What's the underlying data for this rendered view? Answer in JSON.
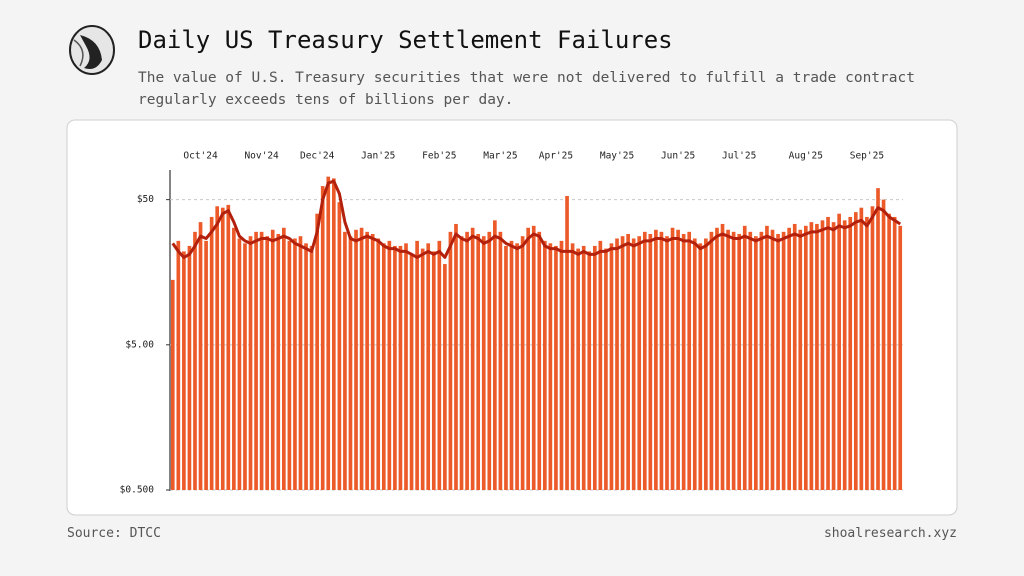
{
  "chart_data": {
    "type": "bar",
    "title": "Daily US Treasury Settlement Failures",
    "subtitle": "The value of U.S. Treasury securities that were not delivered to fulfill a trade contract regularly exceeds tens of billions per day.",
    "source": "Source: DTCC",
    "credit": "shoalresearch.xyz",
    "log_y": true,
    "grid": true,
    "color": "#ec5a2a",
    "line_color": "#b3200c",
    "ylim": [
      0.5,
      80
    ],
    "yticks": [
      {
        "value": 0.5,
        "label": "$0.500"
      },
      {
        "value": 5,
        "label": "$5.00"
      },
      {
        "value": 50,
        "label": "$50"
      }
    ],
    "categories": [
      null,
      null,
      null,
      null,
      null,
      "Oct'24",
      null,
      null,
      null,
      null,
      null,
      null,
      null,
      null,
      null,
      null,
      "Nov'24",
      null,
      null,
      null,
      null,
      null,
      null,
      null,
      null,
      null,
      "Dec'24",
      null,
      null,
      null,
      null,
      null,
      null,
      null,
      null,
      null,
      null,
      "Jan'25",
      null,
      null,
      null,
      null,
      null,
      null,
      null,
      null,
      null,
      null,
      "Feb'25",
      null,
      null,
      null,
      null,
      null,
      null,
      null,
      null,
      null,
      null,
      "Mar'25",
      null,
      null,
      null,
      null,
      null,
      null,
      null,
      null,
      null,
      "Apr'25",
      null,
      null,
      null,
      null,
      null,
      null,
      null,
      null,
      null,
      null,
      "May'25",
      null,
      null,
      null,
      null,
      null,
      null,
      null,
      null,
      null,
      null,
      "Jun'25",
      null,
      null,
      null,
      null,
      null,
      null,
      null,
      null,
      null,
      null,
      "Jul'25",
      null,
      null,
      null,
      null,
      null,
      null,
      null,
      null,
      null,
      null,
      null,
      "Aug'25",
      null,
      null,
      null,
      null,
      null,
      null,
      null,
      null,
      null,
      null,
      "Sep'25",
      null,
      null,
      null,
      null,
      null,
      null
    ],
    "values": [
      14,
      26,
      22,
      24,
      30,
      35,
      26,
      38,
      45,
      44,
      46,
      32,
      27,
      25,
      28,
      30,
      30,
      28,
      31,
      29,
      32,
      26,
      27,
      28,
      25,
      24,
      40,
      62,
      72,
      70,
      48,
      30,
      28,
      31,
      32,
      30,
      29,
      27,
      25,
      26,
      24,
      24,
      25,
      21,
      26,
      23,
      25,
      22,
      26,
      18,
      30,
      34,
      28,
      30,
      32,
      29,
      28,
      30,
      36,
      30,
      24,
      26,
      25,
      28,
      32,
      33,
      30,
      26,
      25,
      24,
      26,
      53,
      25,
      23,
      24,
      22,
      24,
      26,
      23,
      25,
      27,
      28,
      29,
      27,
      28,
      30,
      29,
      31,
      30,
      28,
      32,
      31,
      29,
      30,
      27,
      25,
      27,
      30,
      32,
      34,
      31,
      30,
      29,
      33,
      30,
      28,
      30,
      33,
      31,
      29,
      30,
      32,
      34,
      31,
      33,
      35,
      34,
      36,
      38,
      35,
      40,
      36,
      38,
      41,
      44,
      38,
      45,
      60,
      50,
      40,
      38,
      33
    ],
    "line_values": [
      25,
      22,
      20,
      21,
      24,
      28,
      27,
      30,
      34,
      40,
      42,
      35,
      28,
      26,
      25,
      26,
      27,
      27,
      26,
      27,
      28,
      27,
      25,
      24,
      23,
      22,
      30,
      50,
      65,
      67,
      55,
      35,
      27,
      26,
      27,
      28,
      27,
      26,
      24,
      23,
      23,
      22,
      22,
      21,
      20,
      21,
      22,
      21,
      22,
      20,
      24,
      29,
      27,
      26,
      28,
      27,
      25,
      26,
      28,
      27,
      25,
      24,
      23,
      24,
      27,
      29,
      28,
      24,
      23,
      23,
      22,
      22,
      22,
      21,
      22,
      21,
      21,
      22,
      22,
      23,
      23,
      24,
      25,
      24,
      25,
      26,
      26,
      27,
      27,
      26,
      27,
      27,
      26,
      26,
      25,
      23,
      24,
      26,
      28,
      29,
      28,
      27,
      27,
      28,
      27,
      26,
      27,
      28,
      27,
      26,
      27,
      28,
      29,
      28,
      29,
      30,
      30,
      31,
      32,
      31,
      33,
      32,
      33,
      35,
      36,
      33,
      38,
      44,
      42,
      38,
      36,
      34
    ]
  }
}
